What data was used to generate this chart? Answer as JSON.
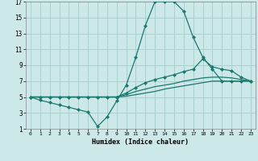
{
  "xlabel": "Humidex (Indice chaleur)",
  "bg_color": "#cce8e8",
  "grid_color": "#aad0d0",
  "line_color": "#1a7a6e",
  "xlim": [
    -0.5,
    23.5
  ],
  "ylim": [
    1,
    17
  ],
  "xticks": [
    0,
    1,
    2,
    3,
    4,
    5,
    6,
    7,
    8,
    9,
    10,
    11,
    12,
    13,
    14,
    15,
    16,
    17,
    18,
    19,
    20,
    21,
    22,
    23
  ],
  "yticks": [
    1,
    3,
    5,
    7,
    9,
    11,
    13,
    15,
    17
  ],
  "line1_x": [
    0,
    1,
    2,
    3,
    4,
    5,
    6,
    7,
    8,
    9,
    10,
    11,
    12,
    13,
    14,
    15,
    16,
    17,
    18,
    19,
    20,
    21,
    22,
    23
  ],
  "line1_y": [
    5.0,
    4.6,
    4.3,
    4.0,
    3.7,
    3.4,
    3.1,
    1.3,
    2.5,
    4.5,
    6.5,
    10.0,
    14.0,
    17.0,
    17.0,
    17.0,
    15.8,
    12.5,
    10.0,
    8.5,
    7.0,
    7.0,
    7.0,
    7.0
  ],
  "line2_x": [
    0,
    1,
    2,
    3,
    4,
    5,
    6,
    7,
    8,
    9,
    10,
    11,
    12,
    13,
    14,
    15,
    16,
    17,
    18,
    19,
    20,
    21,
    22,
    23
  ],
  "line2_y": [
    5.0,
    5.0,
    5.0,
    5.0,
    5.0,
    5.0,
    5.0,
    5.0,
    5.0,
    5.0,
    5.5,
    6.2,
    6.8,
    7.2,
    7.5,
    7.8,
    8.2,
    8.5,
    9.8,
    8.8,
    8.5,
    8.3,
    7.5,
    7.0
  ],
  "line3_x": [
    0,
    1,
    2,
    3,
    4,
    5,
    6,
    7,
    8,
    9,
    10,
    11,
    12,
    13,
    14,
    15,
    16,
    17,
    18,
    19,
    20,
    21,
    22,
    23
  ],
  "line3_y": [
    5.0,
    5.0,
    5.0,
    5.0,
    5.0,
    5.0,
    5.0,
    5.0,
    5.0,
    5.0,
    5.3,
    5.7,
    6.0,
    6.3,
    6.5,
    6.7,
    7.0,
    7.2,
    7.4,
    7.5,
    7.5,
    7.4,
    7.2,
    7.0
  ],
  "line4_x": [
    0,
    1,
    2,
    3,
    4,
    5,
    6,
    7,
    8,
    9,
    10,
    11,
    12,
    13,
    14,
    15,
    16,
    17,
    18,
    19,
    20,
    21,
    22,
    23
  ],
  "line4_y": [
    5.0,
    5.0,
    5.0,
    5.0,
    5.0,
    5.0,
    5.0,
    5.0,
    5.0,
    5.0,
    5.1,
    5.3,
    5.5,
    5.7,
    6.0,
    6.2,
    6.4,
    6.6,
    6.8,
    7.0,
    7.0,
    7.0,
    7.0,
    7.0
  ]
}
